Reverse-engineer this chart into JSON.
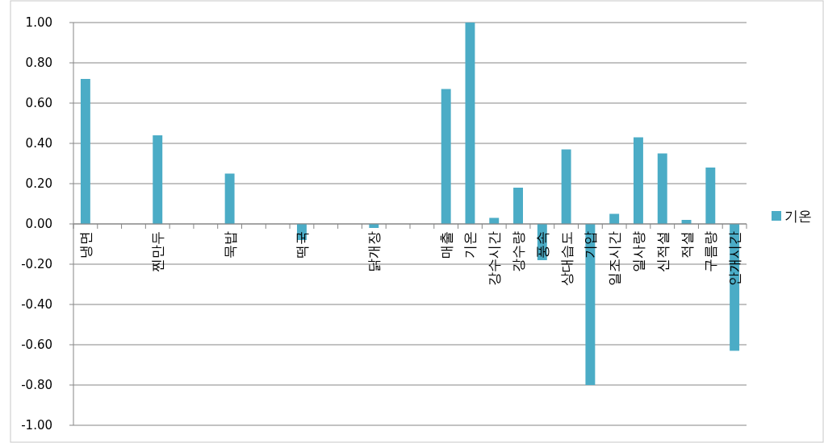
{
  "chart_data": {
    "type": "bar",
    "categories": [
      "냉면",
      null,
      null,
      "찐만두",
      null,
      null,
      "묵밥",
      null,
      null,
      "떡국",
      null,
      null,
      "닭개장",
      null,
      null,
      "매출",
      "기온",
      "강수시간",
      "강수량",
      "풍속",
      "상대습도",
      "기압",
      "일조시간",
      "일사량",
      "신적설",
      "적설",
      "구름량",
      "안개시간"
    ],
    "series": [
      {
        "name": "기온",
        "color": "#4bacc6",
        "values": [
          0.72,
          null,
          null,
          0.44,
          null,
          null,
          0.25,
          null,
          null,
          -0.08,
          null,
          null,
          -0.02,
          null,
          null,
          0.67,
          1.0,
          0.03,
          0.18,
          -0.18,
          0.37,
          -0.8,
          0.05,
          0.43,
          0.35,
          0.02,
          0.28,
          -0.63
        ]
      }
    ],
    "ylim": [
      -1,
      1
    ],
    "yticks": [
      {
        "value": -1,
        "label": "-1.00"
      },
      {
        "value": -0.8,
        "label": "-0.80"
      },
      {
        "value": -0.6,
        "label": "-0.60"
      },
      {
        "value": -0.4,
        "label": "-0.40"
      },
      {
        "value": -0.2,
        "label": "-0.20"
      },
      {
        "value": 0,
        "label": "0.00"
      },
      {
        "value": 0.2,
        "label": "0.20"
      },
      {
        "value": 0.4,
        "label": "0.40"
      },
      {
        "value": 0.6,
        "label": "0.60"
      },
      {
        "value": 0.8,
        "label": "0.80"
      },
      {
        "value": 1,
        "label": "1.00"
      }
    ],
    "grid": "y",
    "legend": "right"
  }
}
